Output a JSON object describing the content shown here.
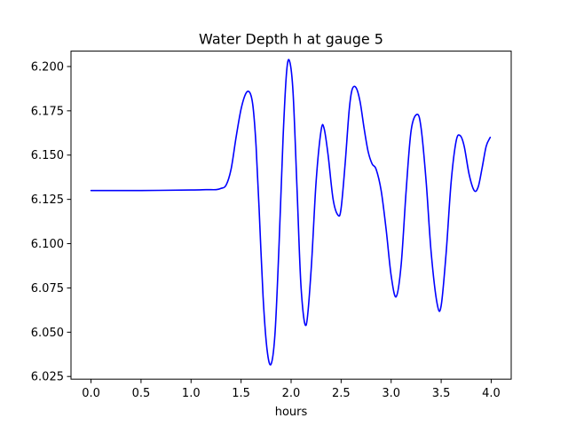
{
  "chart_data": {
    "type": "line",
    "title": "Water Depth h at gauge 5",
    "xlabel": "hours",
    "ylabel": "",
    "xlim": [
      -0.2,
      4.2
    ],
    "ylim": [
      6.0235,
      6.2087
    ],
    "xticks": [
      0.0,
      0.5,
      1.0,
      1.5,
      2.0,
      2.5,
      3.0,
      3.5,
      4.0
    ],
    "xtick_labels": [
      "0.0",
      "0.5",
      "1.0",
      "1.5",
      "2.0",
      "2.5",
      "3.0",
      "3.5",
      "4.0"
    ],
    "yticks": [
      6.025,
      6.05,
      6.075,
      6.1,
      6.125,
      6.15,
      6.175,
      6.2
    ],
    "ytick_labels": [
      "6.025",
      "6.050",
      "6.075",
      "6.100",
      "6.125",
      "6.150",
      "6.175",
      "6.200"
    ],
    "grid": false,
    "series": [
      {
        "name": "",
        "color": "#0000ff",
        "x": [
          0.0,
          0.5,
          1.0,
          1.15,
          1.25,
          1.3,
          1.35,
          1.4,
          1.45,
          1.5,
          1.55,
          1.59,
          1.62,
          1.65,
          1.68,
          1.72,
          1.76,
          1.8,
          1.84,
          1.88,
          1.92,
          1.955,
          1.985,
          2.02,
          2.06,
          2.1,
          2.15,
          2.2,
          2.25,
          2.3,
          2.33,
          2.37,
          2.42,
          2.47,
          2.5,
          2.54,
          2.58,
          2.61,
          2.65,
          2.69,
          2.73,
          2.77,
          2.81,
          2.85,
          2.9,
          2.95,
          3.0,
          3.05,
          3.1,
          3.15,
          3.2,
          3.26,
          3.3,
          3.35,
          3.4,
          3.46,
          3.5,
          3.55,
          3.6,
          3.65,
          3.69,
          3.73,
          3.78,
          3.83,
          3.87,
          3.91,
          3.95,
          3.99
        ],
        "y": [
          6.13,
          6.13,
          6.1303,
          6.1305,
          6.1305,
          6.1312,
          6.133,
          6.142,
          6.16,
          6.176,
          6.185,
          6.185,
          6.177,
          6.155,
          6.12,
          6.07,
          6.04,
          6.032,
          6.05,
          6.1,
          6.16,
          6.197,
          6.203,
          6.185,
          6.13,
          6.075,
          6.054,
          6.085,
          6.135,
          6.164,
          6.165,
          6.15,
          6.125,
          6.116,
          6.12,
          6.145,
          6.175,
          6.187,
          6.188,
          6.18,
          6.165,
          6.152,
          6.145,
          6.142,
          6.13,
          6.108,
          6.082,
          6.07,
          6.088,
          6.13,
          6.164,
          6.173,
          6.165,
          6.135,
          6.095,
          6.066,
          6.065,
          6.095,
          6.135,
          6.158,
          6.161,
          6.155,
          6.139,
          6.13,
          6.132,
          6.143,
          6.155,
          6.16
        ]
      }
    ]
  }
}
